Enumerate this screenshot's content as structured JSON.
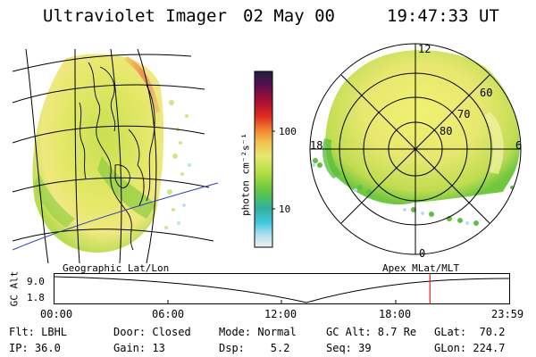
{
  "header": {
    "instrument": "Ultraviolet Imager",
    "date": "02 May 00",
    "time": "19:47:33 UT"
  },
  "colorbar": {
    "unit_label": "photon cm⁻²s⁻¹",
    "tick_100": "100",
    "tick_10": "10",
    "colors": [
      "#202040",
      "#5a1050",
      "#b01030",
      "#e03020",
      "#f08030",
      "#f0c050",
      "#e8e870",
      "#b0dc40",
      "#60c840",
      "#30b0a0",
      "#40c8e0",
      "#b0e0f0",
      "#f0f0f0"
    ]
  },
  "geo_panel": {
    "label": "Geographic Lat/Lon"
  },
  "polar_panel": {
    "label": "Apex MLat/MLT",
    "mlt_labels": {
      "top": "12",
      "left": "18",
      "right": "6",
      "bottom": "0"
    },
    "lat_labels": {
      "outer": "60",
      "middle": "70",
      "inner": "80"
    }
  },
  "altitude_plot": {
    "axis_label": "GC Alt",
    "y_top": "9.0",
    "y_bottom": "1.8",
    "x_ticks": [
      "00:00",
      "06:00",
      "12:00",
      "18:00",
      "23:59"
    ],
    "marker_time": "19:47",
    "marker_fraction": 0.825
  },
  "status": {
    "filter": "Flt: LBHL",
    "ip": "IP: 36.0",
    "door": "Door: Closed",
    "gain": "Gain: 13",
    "mode": "Mode: Normal",
    "dsp": "Dsp:    5.2",
    "gc_alt": "GC Alt: 8.7 Re",
    "seq": "Seq: 39",
    "glat": "GLat:  70.2",
    "glon": "GLon: 224.7"
  }
}
